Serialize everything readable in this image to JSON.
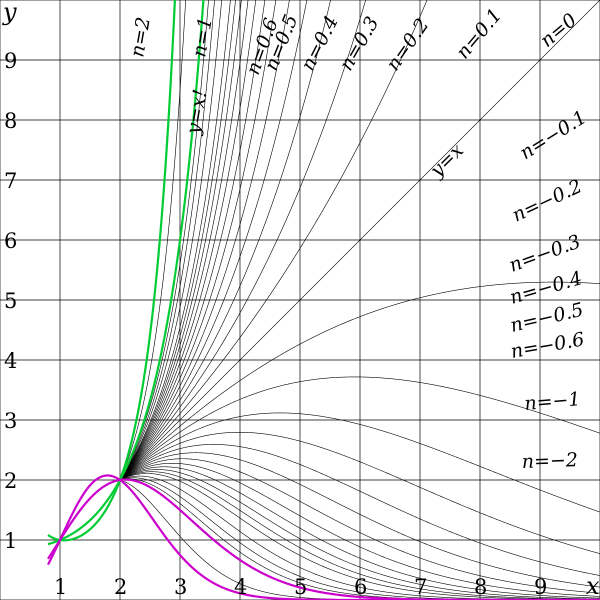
{
  "chart_data": {
    "type": "line",
    "title": "",
    "xlabel": "x",
    "ylabel": "y",
    "xlim": [
      0,
      10
    ],
    "ylim": [
      0,
      10
    ],
    "grid": true,
    "x_ticks": [
      "1",
      "2",
      "3",
      "4",
      "5",
      "6",
      "7",
      "8",
      "9"
    ],
    "y_ticks": [
      "1",
      "2",
      "3",
      "4",
      "5",
      "6",
      "7",
      "8",
      "9"
    ],
    "family": {
      "description_in_picture": "thin black curves for n from -2 to 2",
      "n_values": [
        -2,
        -1.5,
        -1,
        -0.9,
        -0.8,
        -0.7,
        -0.6,
        -0.55,
        -0.5,
        -0.45,
        -0.4,
        -0.35,
        -0.3,
        -0.25,
        -0.2,
        -0.15,
        -0.1,
        -0.05,
        0,
        0.05,
        0.1,
        0.15,
        0.2,
        0.25,
        0.3,
        0.35,
        0.4,
        0.45,
        0.5,
        0.55,
        0.6,
        0.7,
        0.8,
        0.9,
        1,
        1.5,
        2
      ],
      "color": "#000000"
    },
    "highlighted": [
      {
        "n": 2,
        "color": "#00cc33"
      },
      {
        "n": 1,
        "color": "#00cc33"
      },
      {
        "n": -1,
        "color": "#cc00cc"
      },
      {
        "n": -2,
        "color": "#cc00cc"
      }
    ],
    "labels": [
      {
        "text": "n=2",
        "n": 2
      },
      {
        "text": "n=1",
        "n": 1
      },
      {
        "text": "n=0.6",
        "n": 0.6
      },
      {
        "text": "n=0.5",
        "n": 0.5
      },
      {
        "text": "n=0.4",
        "n": 0.4
      },
      {
        "text": "n=0.3",
        "n": 0.3
      },
      {
        "text": "n=0.2",
        "n": 0.2
      },
      {
        "text": "n=0.1",
        "n": 0.1
      },
      {
        "text": "n=0",
        "n": 0
      },
      {
        "text": "n=−0.1",
        "n": -0.1
      },
      {
        "text": "n=−0.2",
        "n": -0.2
      },
      {
        "text": "n=−0.3",
        "n": -0.3
      },
      {
        "text": "n=−0.4",
        "n": -0.4
      },
      {
        "text": "n=−0.5",
        "n": -0.5
      },
      {
        "text": "n=−0.6",
        "n": -0.6
      },
      {
        "text": "n=−1",
        "n": -1
      },
      {
        "text": "n=−2",
        "n": -2
      },
      {
        "text": "y=x!",
        "n": 1
      },
      {
        "text": "y=x",
        "n": 0
      }
    ]
  }
}
